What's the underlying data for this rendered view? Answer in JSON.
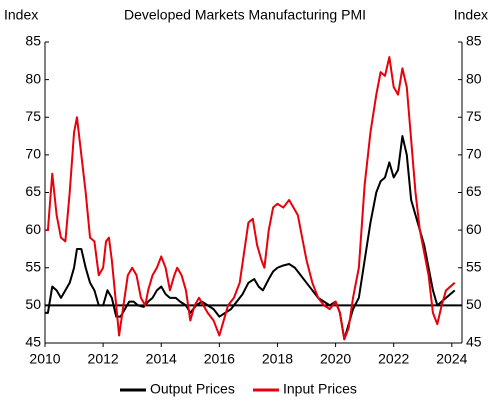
{
  "chart_data": {
    "type": "line",
    "title": "Developed Markets Manufacturing PMI",
    "ylabel": "Index",
    "y2label": "Index",
    "xlim": [
      2010,
      2024.35
    ],
    "xticks": [
      2010,
      2012,
      2014,
      2016,
      2018,
      2020,
      2022,
      2024
    ],
    "ylim": [
      45,
      85
    ],
    "yticks": [
      45,
      50,
      55,
      60,
      65,
      70,
      75,
      80,
      85
    ],
    "y2lim": [
      45,
      85
    ],
    "y2ticks": [
      45,
      50,
      55,
      60,
      65,
      70,
      75,
      80,
      85
    ],
    "hline": 50,
    "legend": "bottom",
    "series": [
      {
        "name": "Output Prices",
        "color": "#000000",
        "x": [
          2010.0,
          2010.1,
          2010.25,
          2010.4,
          2010.55,
          2010.7,
          2010.85,
          2011.0,
          2011.1,
          2011.25,
          2011.4,
          2011.55,
          2011.7,
          2011.85,
          2012.0,
          2012.15,
          2012.3,
          2012.45,
          2012.6,
          2012.75,
          2012.9,
          2013.05,
          2013.2,
          2013.4,
          2013.55,
          2013.7,
          2013.85,
          2014.0,
          2014.15,
          2014.3,
          2014.5,
          2014.65,
          2014.85,
          2015.0,
          2015.2,
          2015.4,
          2015.6,
          2015.8,
          2016.0,
          2016.2,
          2016.4,
          2016.6,
          2016.8,
          2017.0,
          2017.2,
          2017.35,
          2017.5,
          2017.7,
          2017.85,
          2018.0,
          2018.2,
          2018.4,
          2018.6,
          2018.8,
          2019.0,
          2019.2,
          2019.4,
          2019.6,
          2019.8,
          2020.0,
          2020.15,
          2020.3,
          2020.45,
          2020.6,
          2020.8,
          2021.0,
          2021.2,
          2021.4,
          2021.55,
          2021.7,
          2021.85,
          2022.0,
          2022.15,
          2022.3,
          2022.45,
          2022.6,
          2022.75,
          2022.9,
          2023.05,
          2023.2,
          2023.35,
          2023.5,
          2023.65,
          2023.8,
          2023.95,
          2024.1
        ],
        "values": [
          49,
          49,
          52.5,
          52,
          51,
          52,
          53,
          55,
          57.5,
          57.5,
          55,
          53,
          52,
          50,
          50,
          52,
          51,
          48.5,
          48.5,
          49.5,
          50.5,
          50.5,
          50,
          49.8,
          50.5,
          51,
          52,
          52.5,
          51.5,
          51,
          51,
          50.5,
          50,
          49,
          50,
          50.5,
          50,
          49.5,
          48.5,
          49,
          49.5,
          50.5,
          51.5,
          53,
          53.5,
          52.5,
          52,
          53.5,
          54.5,
          55,
          55.3,
          55.5,
          55,
          54,
          53,
          52,
          51,
          50.5,
          50,
          50.5,
          49,
          45.5,
          47.5,
          49.5,
          51,
          56,
          61,
          65,
          66.5,
          67,
          69,
          67,
          68,
          72.5,
          70,
          64,
          62,
          60,
          58,
          55,
          52,
          50,
          50.5,
          51,
          51.5,
          52
        ]
      },
      {
        "name": "Input Prices",
        "color": "#e8000b",
        "x": [
          2010.0,
          2010.1,
          2010.25,
          2010.4,
          2010.55,
          2010.7,
          2010.85,
          2011.0,
          2011.1,
          2011.25,
          2011.4,
          2011.55,
          2011.7,
          2011.85,
          2012.0,
          2012.1,
          2012.2,
          2012.3,
          2012.45,
          2012.55,
          2012.7,
          2012.85,
          2013.0,
          2013.15,
          2013.3,
          2013.45,
          2013.55,
          2013.7,
          2013.85,
          2014.0,
          2014.15,
          2014.3,
          2014.45,
          2014.55,
          2014.7,
          2014.85,
          2015.0,
          2015.15,
          2015.3,
          2015.45,
          2015.6,
          2015.8,
          2016.0,
          2016.15,
          2016.3,
          2016.5,
          2016.7,
          2016.85,
          2017.0,
          2017.15,
          2017.3,
          2017.45,
          2017.55,
          2017.7,
          2017.85,
          2018.0,
          2018.2,
          2018.4,
          2018.55,
          2018.7,
          2018.85,
          2019.0,
          2019.2,
          2019.4,
          2019.6,
          2019.8,
          2020.0,
          2020.15,
          2020.3,
          2020.45,
          2020.6,
          2020.8,
          2021.0,
          2021.2,
          2021.4,
          2021.55,
          2021.7,
          2021.85,
          2022.0,
          2022.15,
          2022.3,
          2022.45,
          2022.6,
          2022.75,
          2022.9,
          2023.05,
          2023.2,
          2023.35,
          2023.5,
          2023.65,
          2023.8,
          2023.95,
          2024.1
        ],
        "values": [
          60,
          60,
          67.5,
          62,
          59,
          58.5,
          65,
          73,
          75,
          70,
          65,
          59,
          58.5,
          54,
          55,
          58.5,
          59,
          56,
          50,
          46,
          50,
          54,
          55,
          54,
          51,
          50,
          52,
          54,
          55,
          56.5,
          55,
          52,
          54,
          55,
          54,
          52,
          48,
          50,
          51,
          50,
          49,
          48,
          46,
          48,
          50,
          51,
          53,
          57,
          61,
          61.5,
          58,
          56,
          55,
          60,
          63,
          63.5,
          63,
          64,
          63,
          62,
          59,
          56,
          53,
          51,
          50,
          49.5,
          50.5,
          49,
          45.5,
          47,
          51,
          55,
          66,
          73,
          78,
          81,
          80.5,
          83,
          79,
          78,
          81.5,
          79,
          72,
          65,
          60,
          57,
          54,
          49,
          47.5,
          50,
          52,
          52.5,
          53
        ]
      }
    ]
  }
}
